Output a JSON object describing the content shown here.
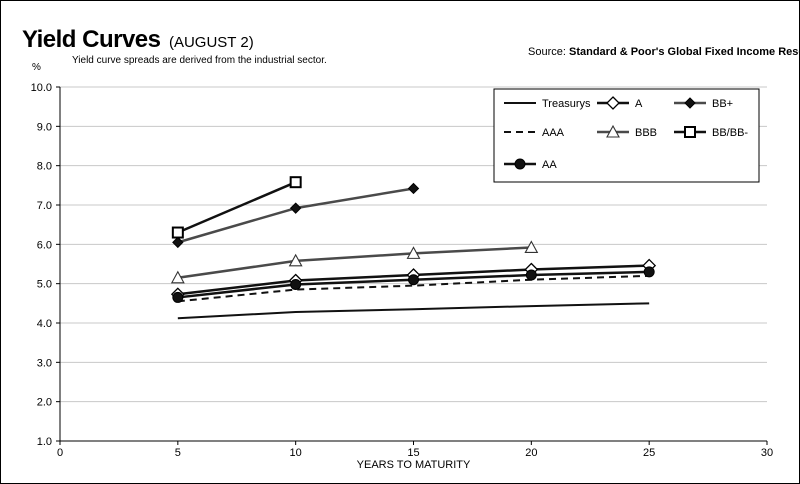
{
  "header": {
    "title": "Yield Curves",
    "date": "(AUGUST 2)",
    "source_label": "Source:",
    "source_value": "Standard & Poor's Global Fixed Income Research",
    "note": "Yield curve spreads are derived from the industrial sector."
  },
  "chart_data": {
    "type": "line",
    "title": "Yield Curves (AUGUST 2)",
    "xlabel": "YEARS TO MATURITY",
    "ylabel": "%",
    "xlim": [
      0,
      30
    ],
    "ylim": [
      1.0,
      10.0
    ],
    "x_ticks": [
      0,
      5,
      10,
      15,
      20,
      25,
      30
    ],
    "y_ticks": [
      1.0,
      2.0,
      3.0,
      4.0,
      5.0,
      6.0,
      7.0,
      8.0,
      9.0,
      10.0
    ],
    "grid": "horizontal",
    "legend_position": "top-right",
    "series": [
      {
        "name": "Treasurys",
        "style": "solid-thin",
        "marker": "none",
        "color": "#111111",
        "x": [
          5,
          10,
          15,
          20,
          25
        ],
        "y": [
          4.12,
          4.28,
          4.35,
          4.43,
          4.5
        ]
      },
      {
        "name": "A",
        "style": "solid",
        "marker": "diamond-open",
        "color": "#111111",
        "x": [
          5,
          10,
          15,
          20,
          25
        ],
        "y": [
          4.73,
          5.08,
          5.22,
          5.36,
          5.46
        ]
      },
      {
        "name": "BB+",
        "style": "solid",
        "marker": "diamond-filled",
        "color": "#4a4a4a",
        "x": [
          5,
          10,
          15
        ],
        "y": [
          6.05,
          6.92,
          7.42
        ]
      },
      {
        "name": "AAA",
        "style": "dashed",
        "marker": "none",
        "color": "#111111",
        "x": [
          5,
          10,
          15,
          20,
          25
        ],
        "y": [
          4.55,
          4.85,
          4.95,
          5.1,
          5.2
        ]
      },
      {
        "name": "BBB",
        "style": "solid",
        "marker": "triangle-open",
        "color": "#4a4a4a",
        "x": [
          5,
          10,
          15,
          20
        ],
        "y": [
          5.15,
          5.58,
          5.77,
          5.92
        ]
      },
      {
        "name": "BB/BB-",
        "style": "solid",
        "marker": "square-open",
        "color": "#111111",
        "x": [
          5,
          10
        ],
        "y": [
          6.3,
          7.58
        ]
      },
      {
        "name": "AA",
        "style": "solid",
        "marker": "circle-filled",
        "color": "#111111",
        "x": [
          5,
          10,
          15,
          20,
          25
        ],
        "y": [
          4.65,
          4.98,
          5.1,
          5.22,
          5.3
        ]
      }
    ]
  }
}
